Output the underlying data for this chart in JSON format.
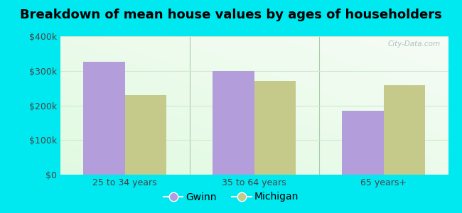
{
  "title": "Breakdown of mean house values by ages of householders",
  "categories": [
    "25 to 34 years",
    "35 to 64 years",
    "65 years+"
  ],
  "gwinn_values": [
    327000,
    300000,
    185000
  ],
  "michigan_values": [
    230000,
    270000,
    258000
  ],
  "gwinn_color": "#b39ddb",
  "michigan_color": "#c5c98a",
  "bar_width": 0.32,
  "ylim": [
    0,
    400000
  ],
  "yticks": [
    0,
    100000,
    200000,
    300000,
    400000
  ],
  "ytick_labels": [
    "$0",
    "$100k",
    "$200k",
    "$300k",
    "$400k"
  ],
  "background_outer": "#00e8f0",
  "grid_color": "#d0e8d0",
  "legend_labels": [
    "Gwinn",
    "Michigan"
  ],
  "title_fontsize": 13,
  "tick_fontsize": 9,
  "legend_fontsize": 10,
  "separator_color": "#aaccaa",
  "watermark_color": "#a0b8b8"
}
